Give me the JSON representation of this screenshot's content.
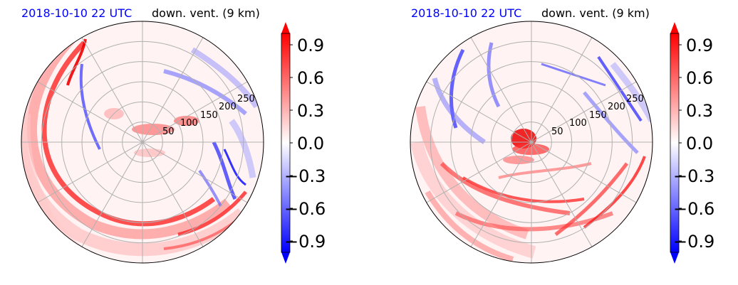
{
  "chart_data": [
    {
      "type": "heatmap",
      "projection": "polar",
      "title_left": "2018-10-10 22 UTC",
      "title_right": "down. vent. (9 km)",
      "radial_ticks": [
        "50",
        "100",
        "150",
        "200",
        "250"
      ],
      "radial_values": [
        50,
        100,
        150,
        200,
        250
      ],
      "rmax": 300,
      "grid": true,
      "colormap": "bwr",
      "colorbar": {
        "ticks": [
          "0.9",
          "0.6",
          "0.3",
          "0.0",
          "−0.3",
          "−0.6",
          "−0.9"
        ],
        "values": [
          0.9,
          0.6,
          0.3,
          0.0,
          -0.3,
          -0.6,
          -0.9
        ],
        "range": [
          -1.0,
          1.0
        ],
        "extend": "both"
      }
    },
    {
      "type": "heatmap",
      "projection": "polar",
      "title_left": "2018-10-10 22 UTC",
      "title_right": "down. vent. (9 km)",
      "radial_ticks": [
        "50",
        "100",
        "150",
        "200",
        "250"
      ],
      "radial_values": [
        50,
        100,
        150,
        200,
        250
      ],
      "rmax": 300,
      "grid": true,
      "colormap": "bwr",
      "colorbar": {
        "ticks": [
          "0.9",
          "0.6",
          "0.3",
          "0.0",
          "−0.3",
          "−0.6",
          "−0.9"
        ],
        "values": [
          0.9,
          0.6,
          0.3,
          0.0,
          -0.3,
          -0.6,
          -0.9
        ],
        "range": [
          -1.0,
          1.0
        ],
        "extend": "both"
      }
    }
  ],
  "colors": {
    "title_left": "#0000ff",
    "title_right": "#000000",
    "grid": "#b0b0b0",
    "positive": "#ff0000",
    "negative": "#0000ff"
  }
}
